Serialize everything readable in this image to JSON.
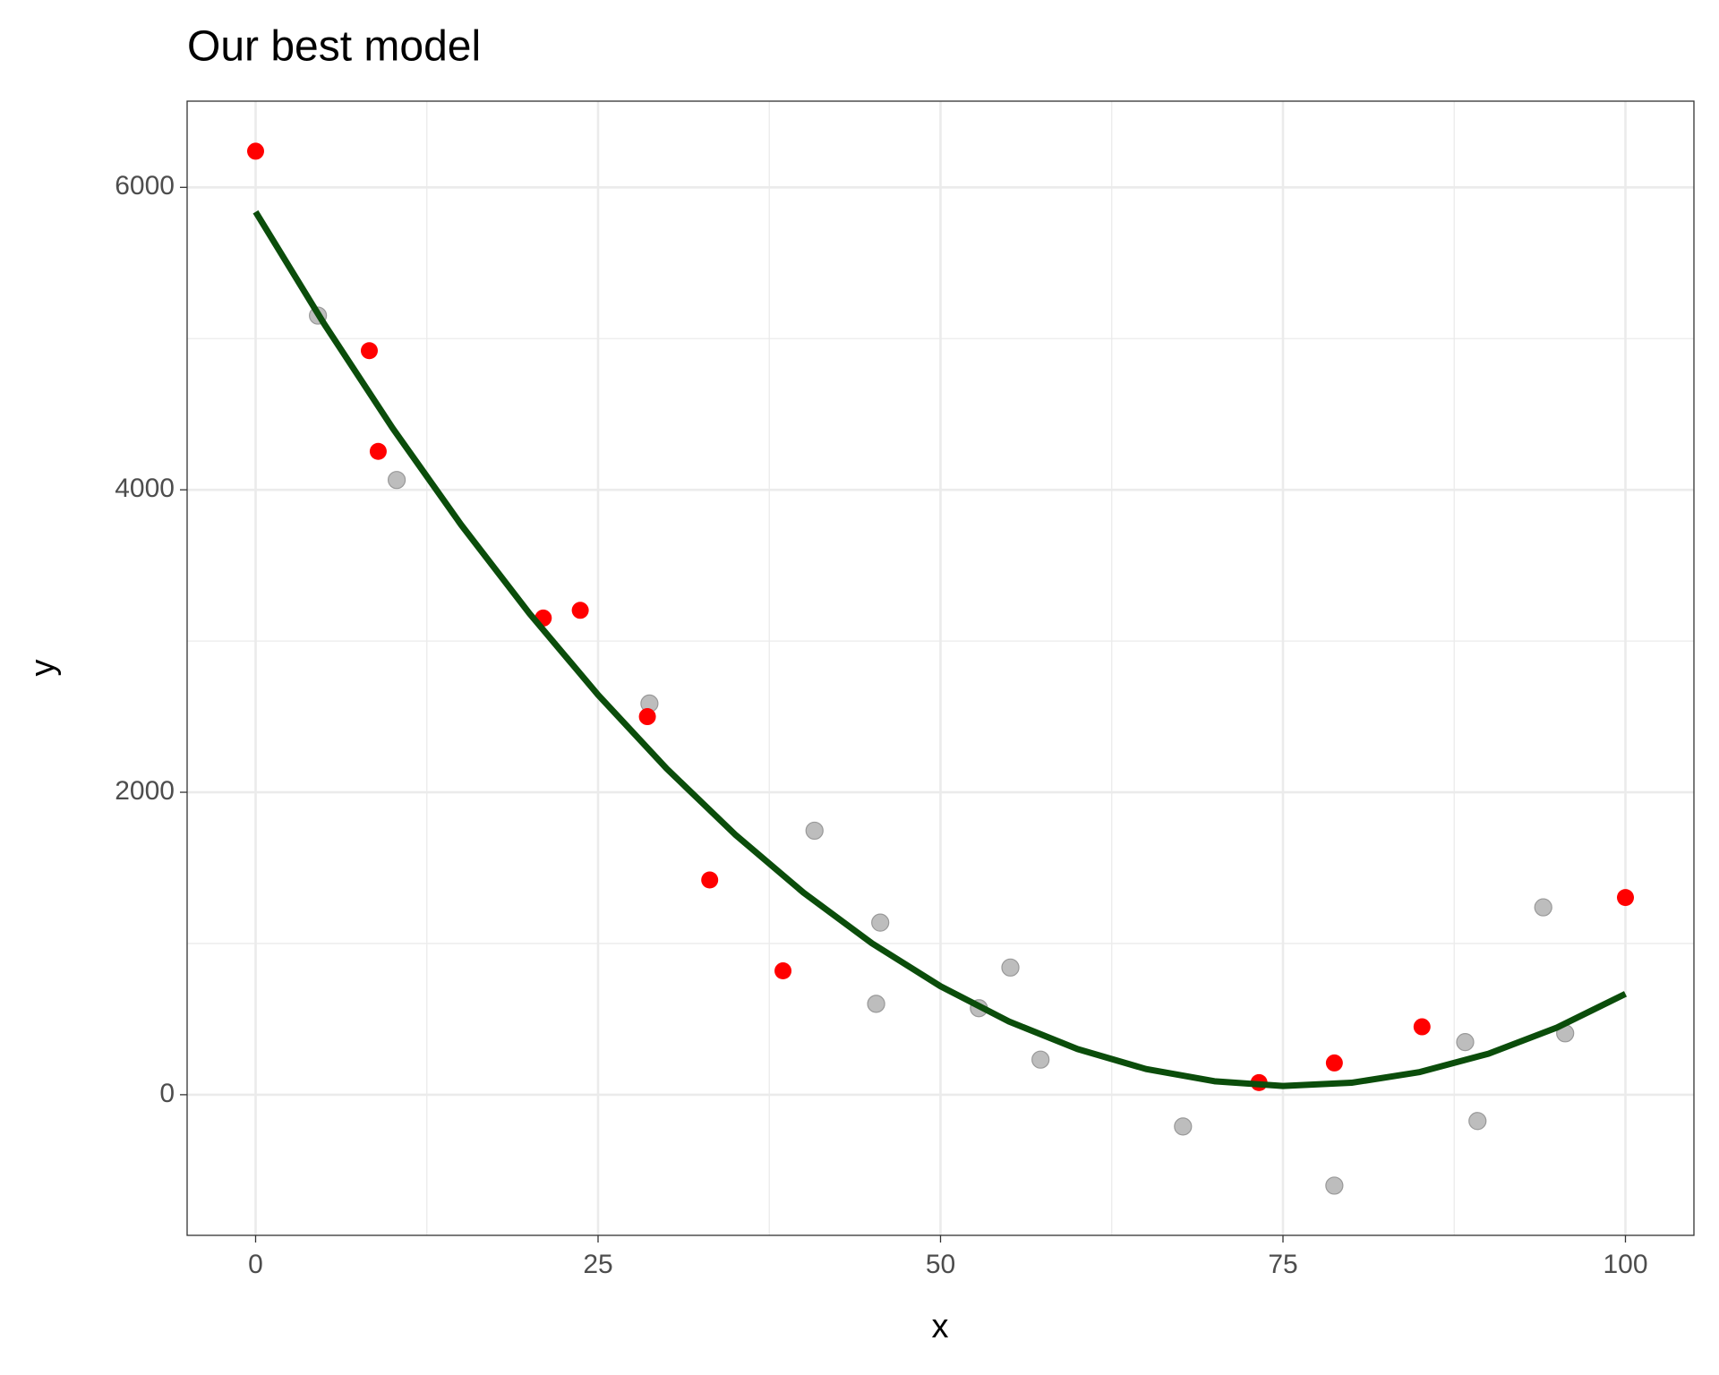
{
  "chart_data": {
    "type": "scatter",
    "title": "Our best model",
    "x_label": "x",
    "y_label": "y",
    "xlim": [
      -5,
      105
    ],
    "ylim": [
      -930,
      6570
    ],
    "xticks": [
      0,
      25,
      50,
      75,
      100
    ],
    "yticks": [
      0,
      2000,
      4000,
      6000
    ],
    "grid": true,
    "minor_grid": true,
    "series": [
      {
        "kind": "points",
        "color": "#bdbdbd",
        "x": [
          4.55,
          10.3,
          28.75,
          40.8,
          45.6,
          45.3,
          52.8,
          55.1,
          57.3,
          67.7,
          78.75,
          88.3,
          89.2,
          94.0,
          95.6
        ],
        "values": [
          5152,
          4065,
          2587,
          1746,
          1138,
          601,
          572,
          841,
          232,
          -210,
          -601,
          348,
          -174,
          1239,
          406
        ]
      },
      {
        "kind": "points",
        "color": "#ff0000",
        "x": [
          0,
          8.3,
          8.95,
          21.0,
          23.7,
          28.6,
          33.15,
          38.5,
          73.25,
          78.75,
          85.15,
          100
        ],
        "values": [
          6239,
          4920,
          4254,
          3152,
          3203,
          2500,
          1420,
          819,
          80,
          210,
          449,
          1304
        ]
      },
      {
        "kind": "line",
        "color": "#0b4d0b",
        "x": [
          0,
          5,
          10,
          15,
          20,
          25,
          30,
          35,
          40,
          45,
          50,
          55,
          60,
          65,
          70,
          75,
          80,
          85,
          90,
          95,
          100
        ],
        "values": [
          5838,
          5098,
          4408,
          3769,
          3181,
          2644,
          2157,
          1721,
          1336,
          1001,
          717,
          484,
          302,
          170,
          89,
          58,
          79,
          150,
          271,
          444,
          667
        ]
      }
    ]
  }
}
